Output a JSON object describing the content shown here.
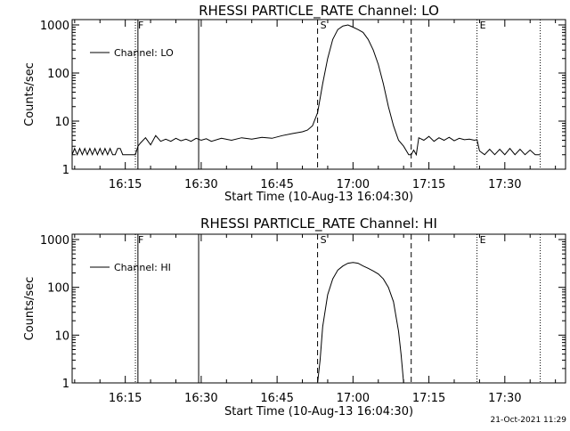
{
  "footer": {
    "timestamp": "21-Oct-2021 11:29"
  },
  "charts": [
    {
      "title": "RHESSI PARTICLE_RATE Channel: LO",
      "ylabel": "Counts/sec",
      "xlabel": "Start Time (10-Aug-13 16:04:30)",
      "legend": "Channel: LO",
      "x_ticks": [
        "16:15",
        "16:30",
        "16:45",
        "17:00",
        "17:15",
        "17:30"
      ],
      "y_ticks": [
        "1",
        "10",
        "100",
        "1000"
      ],
      "markers": [
        {
          "label": "",
          "time": "16:04:30",
          "style": "dotted"
        },
        {
          "label": "F",
          "time": "16:17:00",
          "style": "dotted"
        },
        {
          "label": "",
          "time": "16:17:30",
          "style": "solid"
        },
        {
          "label": "",
          "time": "16:29:30",
          "style": "solid"
        },
        {
          "label": "S",
          "time": "16:53:00",
          "style": "dashed"
        },
        {
          "label": "",
          "time": "17:11:30",
          "style": "dashed"
        },
        {
          "label": "E",
          "time": "17:24:30",
          "style": "dotted"
        },
        {
          "label": "",
          "time": "17:37:00",
          "style": "dotted"
        }
      ]
    },
    {
      "title": "RHESSI PARTICLE_RATE Channel: HI",
      "ylabel": "Counts/sec",
      "xlabel": "Start Time (10-Aug-13 16:04:30)",
      "legend": "Channel: HI",
      "x_ticks": [
        "16:15",
        "16:30",
        "16:45",
        "17:00",
        "17:15",
        "17:30"
      ],
      "y_ticks": [
        "1",
        "10",
        "100",
        "1000"
      ],
      "markers": [
        {
          "label": "",
          "time": "16:04:30",
          "style": "dotted"
        },
        {
          "label": "F",
          "time": "16:17:00",
          "style": "dotted"
        },
        {
          "label": "",
          "time": "16:17:30",
          "style": "solid"
        },
        {
          "label": "",
          "time": "16:29:30",
          "style": "solid"
        },
        {
          "label": "S",
          "time": "16:53:00",
          "style": "dashed"
        },
        {
          "label": "",
          "time": "17:11:30",
          "style": "dashed"
        },
        {
          "label": "E",
          "time": "17:24:30",
          "style": "dotted"
        },
        {
          "label": "",
          "time": "17:37:00",
          "style": "dotted"
        }
      ]
    }
  ],
  "chart_data": [
    {
      "type": "line",
      "title": "RHESSI PARTICLE_RATE Channel: LO",
      "xlabel": "Start Time (10-Aug-13 16:04:30)",
      "ylabel": "Counts/sec",
      "y_scale": "log",
      "xlim": [
        "16:04:30",
        "17:42:00"
      ],
      "ylim": [
        1,
        1000
      ],
      "legend_position": "top-left",
      "grid": false,
      "series": [
        {
          "name": "Channel: LO",
          "x": [
            "16:04:30",
            "16:05:00",
            "16:05:30",
            "16:06:00",
            "16:06:30",
            "16:07:00",
            "16:07:30",
            "16:08:00",
            "16:08:30",
            "16:09:00",
            "16:09:30",
            "16:10:00",
            "16:10:30",
            "16:11:00",
            "16:11:30",
            "16:12:00",
            "16:12:30",
            "16:13:00",
            "16:13:30",
            "16:14:00",
            "16:14:30",
            "16:15:00",
            "16:15:30",
            "16:16:00",
            "16:16:30",
            "16:17:00",
            "16:17:30",
            "16:18:00",
            "16:19:00",
            "16:20:00",
            "16:21:00",
            "16:22:00",
            "16:23:00",
            "16:24:00",
            "16:25:00",
            "16:26:00",
            "16:27:00",
            "16:28:00",
            "16:29:00",
            "16:30:00",
            "16:31:00",
            "16:32:00",
            "16:34:00",
            "16:36:00",
            "16:38:00",
            "16:40:00",
            "16:42:00",
            "16:44:00",
            "16:46:00",
            "16:48:00",
            "16:50:00",
            "16:51:00",
            "16:52:00",
            "16:53:00",
            "16:54:00",
            "16:55:00",
            "16:56:00",
            "16:57:00",
            "16:58:00",
            "16:59:00",
            "17:00:00",
            "17:01:00",
            "17:02:00",
            "17:03:00",
            "17:04:00",
            "17:05:00",
            "17:06:00",
            "17:07:00",
            "17:08:00",
            "17:09:00",
            "17:10:00",
            "17:11:00",
            "17:11:30",
            "17:12:00",
            "17:12:30",
            "17:13:00",
            "17:14:00",
            "17:15:00",
            "17:16:00",
            "17:17:00",
            "17:18:00",
            "17:19:00",
            "17:20:00",
            "17:21:00",
            "17:22:00",
            "17:23:00",
            "17:24:00",
            "17:24:30",
            "17:25:00",
            "17:26:00",
            "17:27:00",
            "17:28:00",
            "17:29:00",
            "17:30:00",
            "17:31:00",
            "17:32:00",
            "17:33:00",
            "17:34:00",
            "17:35:00",
            "17:36:00",
            "17:37:00"
          ],
          "y": [
            2.0,
            2.7,
            2.0,
            2.7,
            2.0,
            2.7,
            2.0,
            2.7,
            2.0,
            2.7,
            2.0,
            2.7,
            2.0,
            2.7,
            2.0,
            2.7,
            2.0,
            2.0,
            2.7,
            2.7,
            2.0,
            2.0,
            2.0,
            2.0,
            2.0,
            2.0,
            3.0,
            3.5,
            4.5,
            3.2,
            5.0,
            3.8,
            4.2,
            3.8,
            4.4,
            3.9,
            4.2,
            3.8,
            4.4,
            4.0,
            4.3,
            3.8,
            4.4,
            4.0,
            4.5,
            4.2,
            4.6,
            4.4,
            5.0,
            5.5,
            6.0,
            6.5,
            8.0,
            15,
            60,
            200,
            500,
            800,
            950,
            1000,
            900,
            800,
            700,
            500,
            300,
            150,
            60,
            20,
            8,
            4,
            3,
            2.0,
            2.0,
            2.5,
            2.0,
            4.5,
            4.0,
            4.8,
            3.8,
            4.5,
            4.0,
            4.6,
            3.9,
            4.4,
            4.1,
            4.2,
            4.0,
            4.1,
            2.4,
            2.0,
            2.6,
            2.0,
            2.6,
            2.0,
            2.7,
            2.0,
            2.6,
            2.0,
            2.5,
            2.0,
            2.0
          ]
        }
      ]
    },
    {
      "type": "line",
      "title": "RHESSI PARTICLE_RATE Channel: HI",
      "xlabel": "Start Time (10-Aug-13 16:04:30)",
      "ylabel": "Counts/sec",
      "y_scale": "log",
      "xlim": [
        "16:04:30",
        "17:42:00"
      ],
      "ylim": [
        1,
        1000
      ],
      "legend_position": "top-left",
      "grid": false,
      "series": [
        {
          "name": "Channel: HI",
          "x": [
            "16:53:00",
            "16:53:30",
            "16:54:00",
            "16:55:00",
            "16:56:00",
            "16:57:00",
            "16:58:00",
            "16:59:00",
            "17:00:00",
            "17:01:00",
            "17:02:00",
            "17:03:00",
            "17:04:00",
            "17:05:00",
            "17:06:00",
            "17:07:00",
            "17:08:00",
            "17:09:00",
            "17:09:30",
            "17:10:00"
          ],
          "y": [
            1.0,
            3.0,
            15,
            70,
            150,
            230,
            280,
            320,
            330,
            320,
            280,
            250,
            220,
            190,
            150,
            100,
            50,
            12,
            4,
            1.0
          ]
        }
      ]
    }
  ]
}
